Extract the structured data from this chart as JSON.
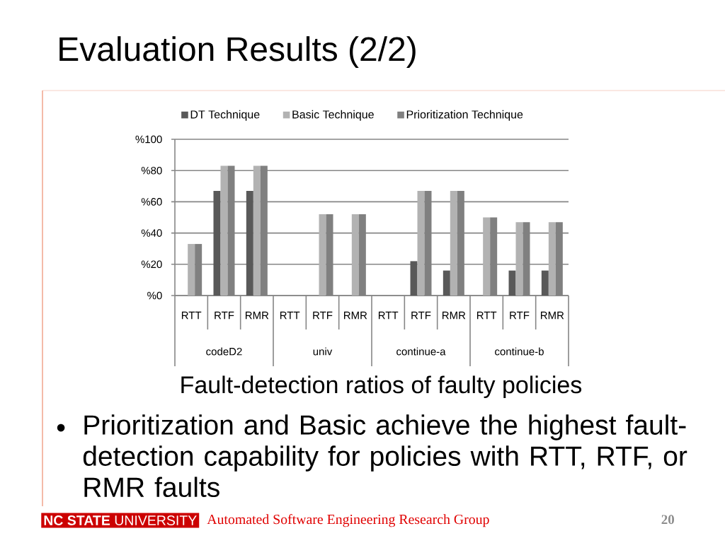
{
  "chart_data": {
    "type": "bar",
    "title": "Evaluation Results (2/2)",
    "categories": [
      "RTT",
      "RTF",
      "RMR",
      "RTT",
      "RTF",
      "RMR",
      "RTT",
      "RTF",
      "RMR",
      "RTT",
      "RTF",
      "RMR"
    ],
    "series": [
      {
        "name": "DT Technique",
        "color": "#595959",
        "values": [
          0,
          67,
          67,
          0,
          0,
          0,
          0,
          22,
          16,
          0,
          16,
          16
        ]
      },
      {
        "name": "Basic Technique",
        "color": "#b2b2b2",
        "values": [
          33,
          83,
          83,
          0,
          52,
          52,
          0,
          67,
          67,
          50,
          47,
          47
        ]
      },
      {
        "name": "Prioritization Technique",
        "color": "#808080",
        "values": [
          33,
          83,
          83,
          0,
          52,
          52,
          0,
          67,
          67,
          50,
          47,
          47
        ]
      }
    ],
    "ylim": [
      0,
      100
    ],
    "yticks": [
      {
        "value": 0,
        "label": "%0"
      },
      {
        "value": 20,
        "label": "%20"
      },
      {
        "value": 40,
        "label": "%40"
      },
      {
        "value": 60,
        "label": "%60"
      },
      {
        "value": 80,
        "label": "%80"
      },
      {
        "value": 100,
        "label": "%100"
      }
    ],
    "grid": "y",
    "legend": "top",
    "annotations": [
      "codeD2",
      "univ",
      "continue-a",
      "continue-b",
      "Fault-detection ratios of faulty policies",
      "•",
      "Prioritization and Basic achieve the highest fault-detection capability for policies with RTT, RTF, or RMR faults",
      "**NC STATE** UNIVERSITY",
      "Automated Software Engineering Research Group",
      "20"
    ]
  }
}
